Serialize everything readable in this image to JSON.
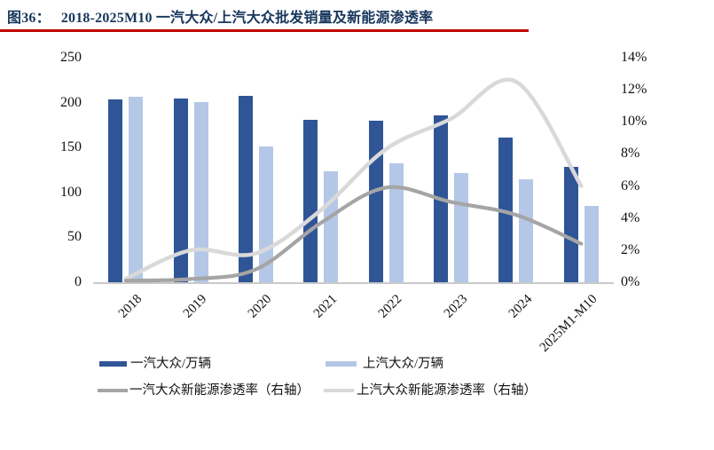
{
  "figure": {
    "number_label": "图36：",
    "title": "2018-2025M10 一汽大众/上汽大众批发销量及新能源渗透率"
  },
  "colors": {
    "title_text": "#17365D",
    "title_underline": "#C00000",
    "faw_bar": "#2F5597",
    "saic_bar": "#B4C7E7",
    "faw_line": "#A5A5A5",
    "saic_line": "#D9D9D9",
    "axis_text": "#111111",
    "baseline": "#C9C9C9",
    "background": "#FFFFFF"
  },
  "chart_data": {
    "type": "bar+line combo, dual axis",
    "categories": [
      "2018",
      "2019",
      "2020",
      "2021",
      "2022",
      "2023",
      "2024",
      "2025M1-M10"
    ],
    "left_axis": {
      "min": 0,
      "max": 250,
      "step": 50,
      "tick_labels": [
        "250",
        "200",
        "150",
        "100",
        "50",
        "0"
      ],
      "grid": false
    },
    "right_axis": {
      "min": 0,
      "max": 14,
      "step": 2,
      "tick_labels": [
        "14%",
        "12%",
        "10%",
        "8%",
        "6%",
        "4%",
        "2%",
        "0%"
      ],
      "grid": false
    },
    "series": [
      {
        "name": "一汽大众/万辆",
        "type": "bar",
        "axis": "left",
        "color": "#2F5597",
        "values": [
          204,
          205,
          208,
          181,
          180,
          186,
          161,
          128
        ]
      },
      {
        "name": "上汽大众/万辆",
        "type": "bar",
        "axis": "left",
        "color": "#B4C7E7",
        "values": [
          207,
          201,
          151,
          124,
          132,
          122,
          115,
          85
        ]
      },
      {
        "name": "一汽大众新能源渗透率（右轴）",
        "type": "line",
        "axis": "right",
        "color": "#A5A5A5",
        "values": [
          0.1,
          0.2,
          0.8,
          3.7,
          5.9,
          5.0,
          4.2,
          2.4
        ]
      },
      {
        "name": "上汽大众新能源渗透率（右轴）",
        "type": "line",
        "axis": "right",
        "color": "#D9D9D9",
        "values": [
          0.2,
          2.0,
          1.8,
          4.5,
          8.3,
          10.2,
          12.5,
          6.0
        ]
      }
    ],
    "legend_position": "bottom, two rows, two columns"
  }
}
